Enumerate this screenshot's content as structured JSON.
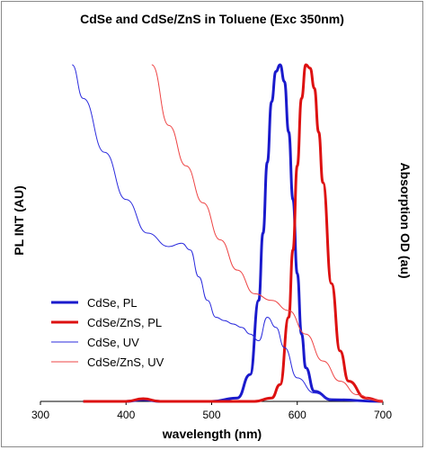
{
  "chart_data": {
    "type": "line",
    "title": "CdSe and CdSe/ZnS in Toluene (Exc 350nm)",
    "xlabel": "wavelength (nm)",
    "ylabel_left": "PL INT (AU)",
    "ylabel_right": "Absorption OD (au)",
    "xlim": [
      300,
      700
    ],
    "ylim": [
      0,
      1
    ],
    "x_ticks": [
      300,
      400,
      500,
      600,
      700
    ],
    "grid": false,
    "legend_position": "lower-left",
    "series": [
      {
        "name": "CdSe, PL",
        "color": "#1a1acc",
        "style": "thick",
        "x": [
          350,
          400,
          420,
          440,
          500,
          530,
          545,
          555,
          560,
          565,
          570,
          575,
          580,
          585,
          590,
          595,
          600,
          605,
          610,
          620,
          640,
          700
        ],
        "y": [
          0.0,
          0.0,
          0.005,
          0.0,
          0.0,
          0.01,
          0.08,
          0.3,
          0.5,
          0.71,
          0.89,
          0.98,
          1.0,
          0.95,
          0.8,
          0.6,
          0.38,
          0.2,
          0.1,
          0.03,
          0.005,
          0.0
        ]
      },
      {
        "name": "CdSe/ZnS, PL",
        "color": "#dd1111",
        "style": "thick",
        "x": [
          350,
          400,
          420,
          440,
          550,
          570,
          580,
          590,
          595,
          600,
          605,
          610,
          615,
          620,
          625,
          630,
          640,
          650,
          660,
          680,
          700
        ],
        "y": [
          0.0,
          0.0,
          0.008,
          0.0,
          0.0,
          0.01,
          0.05,
          0.25,
          0.45,
          0.7,
          0.9,
          1.0,
          0.99,
          0.93,
          0.8,
          0.65,
          0.35,
          0.15,
          0.06,
          0.01,
          0.0
        ]
      },
      {
        "name": "CdSe, UV",
        "color": "#2b2bdd",
        "style": "thin",
        "x": [
          337,
          350,
          375,
          400,
          425,
          450,
          465,
          475,
          485,
          495,
          505,
          515,
          525,
          535,
          545,
          555,
          565,
          575,
          585,
          600,
          620,
          640
        ],
        "y": [
          1.0,
          0.9,
          0.74,
          0.6,
          0.5,
          0.46,
          0.47,
          0.45,
          0.37,
          0.3,
          0.25,
          0.24,
          0.23,
          0.22,
          0.2,
          0.18,
          0.25,
          0.22,
          0.16,
          0.07,
          0.025,
          0.005
        ]
      },
      {
        "name": "CdSe/ZnS, UV",
        "color": "#ee4444",
        "style": "thin",
        "x": [
          430,
          450,
          470,
          490,
          510,
          530,
          550,
          570,
          590,
          610,
          630,
          650,
          670,
          690,
          700
        ],
        "y": [
          1.0,
          0.82,
          0.7,
          0.59,
          0.48,
          0.39,
          0.32,
          0.3,
          0.27,
          0.2,
          0.12,
          0.06,
          0.02,
          0.005,
          0.0
        ]
      }
    ]
  }
}
